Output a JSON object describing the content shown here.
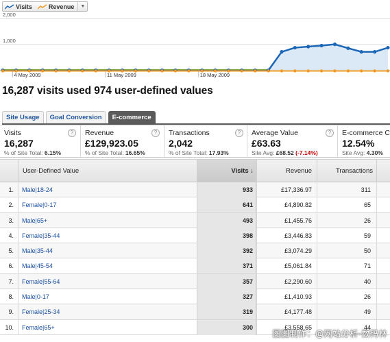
{
  "legend": {
    "series_1": "Visits",
    "series_2": "Revenue",
    "series_1_color": "#1b66b7",
    "series_2_color": "#f29a23"
  },
  "chart_data": {
    "type": "line",
    "y_ticks": [
      "2,000",
      "1,000"
    ],
    "x_ticks": [
      "4 May 2009",
      "11 May 2009",
      "18 May 2009"
    ],
    "ylim": [
      0,
      2000
    ],
    "grid": true,
    "series": [
      {
        "name": "Visits",
        "values": [
          10,
          10,
          10,
          10,
          10,
          10,
          10,
          10,
          10,
          10,
          10,
          10,
          10,
          10,
          10,
          10,
          10,
          10,
          10,
          10,
          10,
          720,
          880,
          920,
          960,
          1010,
          860,
          720,
          720,
          880
        ]
      },
      {
        "name": "Revenue",
        "values": [
          0,
          0,
          0,
          0,
          0,
          0,
          0,
          0,
          0,
          0,
          0,
          0,
          0,
          0,
          0,
          0,
          0,
          0,
          0,
          0,
          0,
          0,
          0,
          0,
          0,
          0,
          0,
          0,
          0,
          0
        ]
      }
    ]
  },
  "headline": "16,287 visits used 974 user-defined values",
  "tabs": [
    {
      "label": "Site Usage"
    },
    {
      "label": "Goal Conversion"
    },
    {
      "label": "E-commerce"
    }
  ],
  "cards": [
    {
      "label": "Visits",
      "value": "16,287",
      "sub_prefix": "% of Site Total: ",
      "sub_value": "6.15%"
    },
    {
      "label": "Revenue",
      "value": "£129,923.05",
      "sub_prefix": "% of Site Total: ",
      "sub_value": "16.65%"
    },
    {
      "label": "Transactions",
      "value": "2,042",
      "sub_prefix": "% of Site Total: ",
      "sub_value": "17.93%"
    },
    {
      "label": "Average Value",
      "value": "£63.63",
      "sub_prefix": "Site Avg: ",
      "sub_value": "£68.52",
      "sub_delta": "(-7.14%)"
    },
    {
      "label": "E-commerce C",
      "value": "12.54%",
      "sub_prefix": "Site Avg: ",
      "sub_value": "4.30%"
    }
  ],
  "table": {
    "headers": {
      "dimension": "User-Defined Value",
      "visits": "Visits ↓",
      "revenue": "Revenue",
      "transactions": "Transactions"
    },
    "rows": [
      {
        "index": "1.",
        "value": "Male|18-24",
        "visits": "933",
        "revenue": "£17,336.97",
        "transactions": "311"
      },
      {
        "index": "2.",
        "value": "Female|0-17",
        "visits": "641",
        "revenue": "£4,890.82",
        "transactions": "65"
      },
      {
        "index": "3.",
        "value": "Male|65+",
        "visits": "493",
        "revenue": "£1,455.76",
        "transactions": "26"
      },
      {
        "index": "4.",
        "value": "Female|35-44",
        "visits": "398",
        "revenue": "£3,446.83",
        "transactions": "59"
      },
      {
        "index": "5.",
        "value": "Male|35-44",
        "visits": "392",
        "revenue": "£3,074.29",
        "transactions": "50"
      },
      {
        "index": "6.",
        "value": "Male|45-54",
        "visits": "371",
        "revenue": "£5,061.84",
        "transactions": "71"
      },
      {
        "index": "7.",
        "value": "Female|55-64",
        "visits": "357",
        "revenue": "£2,290.60",
        "transactions": "40"
      },
      {
        "index": "8.",
        "value": "Male|0-17",
        "visits": "327",
        "revenue": "£1,410.93",
        "transactions": "26"
      },
      {
        "index": "9.",
        "value": "Female|25-34",
        "visits": "319",
        "revenue": "£4,177.48",
        "transactions": "49"
      },
      {
        "index": "10.",
        "value": "Female|65+",
        "visits": "300",
        "revenue": "£3,558.65",
        "transactions": "44"
      }
    ]
  },
  "watermark": "图图制作：@网站分析-数码林"
}
